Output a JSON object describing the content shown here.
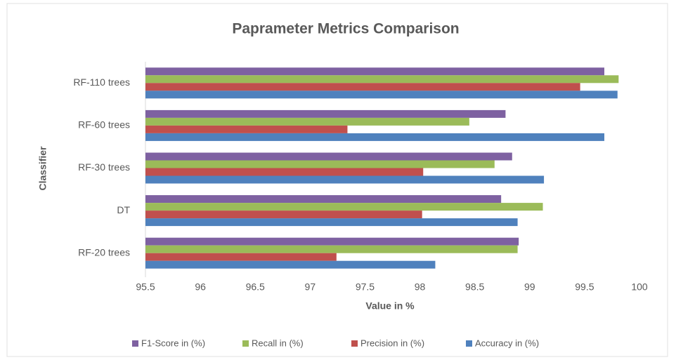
{
  "chart_data": {
    "type": "hbar",
    "title": "Paprameter Metrics Comparison",
    "x_label": "Value in %",
    "y_label": "Classifier",
    "categories": [
      "RF-20 trees",
      "DT",
      "RF-30 trees",
      "RF-60 trees",
      "RF-110 trees"
    ],
    "series": [
      {
        "name": "F1-Score in (%)",
        "color": "#7e61a1",
        "values": [
          98.9,
          98.74,
          98.84,
          98.78,
          99.68
        ]
      },
      {
        "name": "Recall in (%)",
        "color": "#9bbb59",
        "values": [
          98.89,
          99.12,
          98.68,
          98.45,
          99.81
        ]
      },
      {
        "name": "Precision in (%)",
        "color": "#c0504d",
        "values": [
          97.24,
          98.02,
          98.03,
          97.34,
          99.46
        ]
      },
      {
        "name": "Accuracy in (%)",
        "color": "#4f81bd",
        "values": [
          98.14,
          98.89,
          99.13,
          99.68,
          99.8
        ]
      }
    ],
    "xlim": [
      95.5,
      100
    ],
    "xticks": [
      95.5,
      96,
      96.5,
      97,
      97.5,
      98,
      98.5,
      99,
      99.5,
      100
    ],
    "grid": false,
    "legend": "bottom"
  }
}
